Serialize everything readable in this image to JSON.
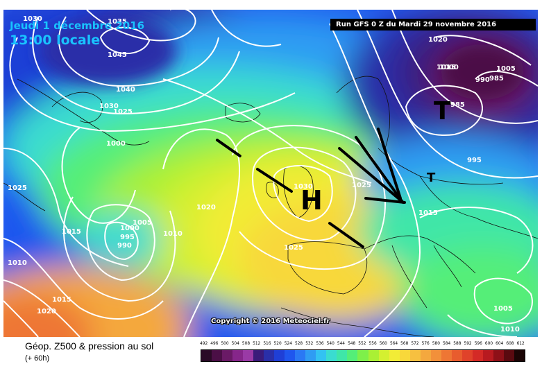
{
  "header": {
    "date": "Jeudi 1 décembre 2016",
    "time": "13:00 locale",
    "run": "Run GFS 0 Z du Mardi 29 novembre 2016"
  },
  "copyright": "Copyright © 2016 Meteociel.fr",
  "footer": {
    "title": "Géop. Z500 & pression au sol",
    "subtitle": "(+ 60h)"
  },
  "legend": {
    "values": [
      "492",
      "496",
      "500",
      "504",
      "508",
      "512",
      "516",
      "520",
      "524",
      "528",
      "532",
      "536",
      "540",
      "544",
      "548",
      "552",
      "556",
      "560",
      "564",
      "568",
      "572",
      "576",
      "580",
      "584",
      "588",
      "592",
      "596",
      "600",
      "604",
      "608",
      "612"
    ],
    "colors": [
      "#2a0a26",
      "#4b0f46",
      "#6a1a66",
      "#86268a",
      "#9a3aa6",
      "#3a1b7a",
      "#2a2fa8",
      "#1f3fd6",
      "#1f56ee",
      "#2a78f4",
      "#2f9cf3",
      "#33c2f2",
      "#3adcd0",
      "#3fe6a8",
      "#54ee78",
      "#7ef04a",
      "#aaf034",
      "#d4f030",
      "#f2ec36",
      "#f8d83a",
      "#f6c040",
      "#f4a83e",
      "#f2903a",
      "#ee7634",
      "#e85c2e",
      "#e0422a",
      "#d42a26",
      "#b81a20",
      "#8e1018",
      "#5a0a10",
      "#1a0505"
    ]
  },
  "map": {
    "isobars": [
      "1030",
      "1035",
      "1045",
      "1040",
      "1030",
      "1025",
      "1000",
      "1025",
      "1015",
      "1005",
      "1000",
      "995",
      "990",
      "1010",
      "1010",
      "1020",
      "1015",
      "1020",
      "1030",
      "1025",
      "1025",
      "1020",
      "1015",
      "1005",
      "1000",
      "990",
      "985",
      "985",
      "995",
      "1015",
      "1005",
      "1010"
    ],
    "highs": [
      "H"
    ],
    "lows": [
      "T",
      "T"
    ]
  }
}
